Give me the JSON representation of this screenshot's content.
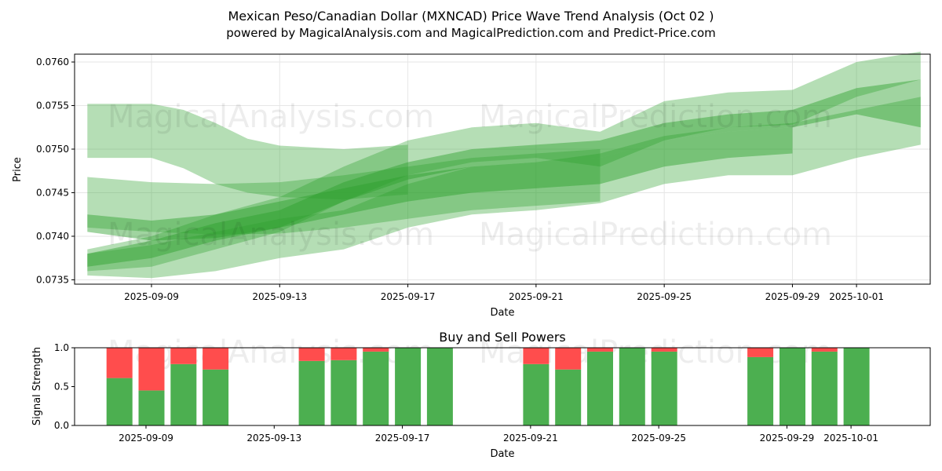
{
  "colors": {
    "band": "#2ca02c",
    "buy": "#4caf50",
    "sell": "#ff4d4d",
    "grid": "#e6e6e6"
  },
  "watermarks": [
    "MagicalAnalysis.com",
    "MagicalPrediction.com"
  ],
  "chart_data": [
    {
      "type": "area",
      "title": "Mexican Peso/Canadian Dollar (MXNCAD) Price Wave Trend Analysis (Oct 02 )",
      "subtitle": "powered by MagicalAnalysis.com and MagicalPrediction.com and Predict-Price.com",
      "xlabel": "Date",
      "ylabel": "Price",
      "xlim": [
        "2025-09-06.6",
        "2025-10-03.3"
      ],
      "ylim": [
        0.07345,
        0.07609
      ],
      "x_ticks": [
        "2025-09-09",
        "2025-09-13",
        "2025-09-17",
        "2025-09-21",
        "2025-09-25",
        "2025-09-29",
        "2025-10-01"
      ],
      "y_ticks": [
        "0.0735",
        "0.0740",
        "0.0745",
        "0.0750",
        "0.0755",
        "0.0760"
      ],
      "grid": true,
      "series": [
        {
          "name": "wave-band-1",
          "opacity": 0.35,
          "points": [
            {
              "x": "2025-09-07",
              "lo": 0.0749,
              "hi": 0.07552
            },
            {
              "x": "2025-09-08",
              "lo": 0.0749,
              "hi": 0.07552
            },
            {
              "x": "2025-09-09",
              "lo": 0.0749,
              "hi": 0.07552
            },
            {
              "x": "2025-09-10",
              "lo": 0.07478,
              "hi": 0.07545
            },
            {
              "x": "2025-09-11",
              "lo": 0.0746,
              "hi": 0.0753
            },
            {
              "x": "2025-09-12",
              "lo": 0.0745,
              "hi": 0.07512
            },
            {
              "x": "2025-09-13",
              "lo": 0.07445,
              "hi": 0.07504
            },
            {
              "x": "2025-09-15",
              "lo": 0.07442,
              "hi": 0.075
            },
            {
              "x": "2025-09-17",
              "lo": 0.07448,
              "hi": 0.07505
            }
          ]
        },
        {
          "name": "wave-band-2",
          "opacity": 0.35,
          "points": [
            {
              "x": "2025-09-07",
              "lo": 0.0741,
              "hi": 0.07468
            },
            {
              "x": "2025-09-09",
              "lo": 0.07405,
              "hi": 0.07462
            },
            {
              "x": "2025-09-11",
              "lo": 0.07402,
              "hi": 0.0746
            },
            {
              "x": "2025-09-13",
              "lo": 0.07403,
              "hi": 0.07462
            },
            {
              "x": "2025-09-15",
              "lo": 0.0741,
              "hi": 0.0747
            },
            {
              "x": "2025-09-17",
              "lo": 0.0742,
              "hi": 0.0748
            },
            {
              "x": "2025-09-19",
              "lo": 0.0743,
              "hi": 0.0749
            },
            {
              "x": "2025-09-21",
              "lo": 0.07435,
              "hi": 0.07495
            },
            {
              "x": "2025-09-23",
              "lo": 0.0744,
              "hi": 0.075
            }
          ]
        },
        {
          "name": "wave-band-3",
          "opacity": 0.45,
          "points": [
            {
              "x": "2025-09-07",
              "lo": 0.07405,
              "hi": 0.07425
            },
            {
              "x": "2025-09-09",
              "lo": 0.07395,
              "hi": 0.07418
            },
            {
              "x": "2025-09-11",
              "lo": 0.07398,
              "hi": 0.07425
            },
            {
              "x": "2025-09-13",
              "lo": 0.0741,
              "hi": 0.0744
            },
            {
              "x": "2025-09-15",
              "lo": 0.07425,
              "hi": 0.07455
            },
            {
              "x": "2025-09-17",
              "lo": 0.0744,
              "hi": 0.0747
            },
            {
              "x": "2025-09-19",
              "lo": 0.0745,
              "hi": 0.0748
            },
            {
              "x": "2025-09-21",
              "lo": 0.07455,
              "hi": 0.07485
            },
            {
              "x": "2025-09-23",
              "lo": 0.0746,
              "hi": 0.0749
            },
            {
              "x": "2025-09-25",
              "lo": 0.0748,
              "hi": 0.0751
            },
            {
              "x": "2025-09-27",
              "lo": 0.0749,
              "hi": 0.0752
            },
            {
              "x": "2025-09-29",
              "lo": 0.07495,
              "hi": 0.07525
            }
          ]
        },
        {
          "name": "wave-band-4",
          "opacity": 0.35,
          "points": [
            {
              "x": "2025-09-07",
              "lo": 0.07355,
              "hi": 0.0738
            },
            {
              "x": "2025-09-09",
              "lo": 0.07352,
              "hi": 0.0739
            },
            {
              "x": "2025-09-11",
              "lo": 0.0736,
              "hi": 0.07405
            },
            {
              "x": "2025-09-13",
              "lo": 0.07375,
              "hi": 0.0742
            },
            {
              "x": "2025-09-15",
              "lo": 0.07385,
              "hi": 0.0743
            },
            {
              "x": "2025-09-17",
              "lo": 0.0741,
              "hi": 0.0746
            },
            {
              "x": "2025-09-19",
              "lo": 0.07425,
              "hi": 0.0748
            },
            {
              "x": "2025-09-21",
              "lo": 0.0743,
              "hi": 0.07485
            },
            {
              "x": "2025-09-23",
              "lo": 0.07438,
              "hi": 0.07495
            },
            {
              "x": "2025-09-25",
              "lo": 0.0746,
              "hi": 0.07515
            },
            {
              "x": "2025-09-27",
              "lo": 0.0747,
              "hi": 0.07525
            },
            {
              "x": "2025-09-29",
              "lo": 0.0747,
              "hi": 0.0753
            },
            {
              "x": "2025-10-01",
              "lo": 0.0749,
              "hi": 0.07545
            },
            {
              "x": "2025-10-03",
              "lo": 0.07505,
              "hi": 0.0756
            }
          ]
        },
        {
          "name": "wave-band-5",
          "opacity": 0.35,
          "points": [
            {
              "x": "2025-09-07",
              "lo": 0.0736,
              "hi": 0.07385
            },
            {
              "x": "2025-09-09",
              "lo": 0.07365,
              "hi": 0.074
            },
            {
              "x": "2025-09-11",
              "lo": 0.07385,
              "hi": 0.07425
            },
            {
              "x": "2025-09-13",
              "lo": 0.07405,
              "hi": 0.07445
            },
            {
              "x": "2025-09-15",
              "lo": 0.0744,
              "hi": 0.0748
            },
            {
              "x": "2025-09-17",
              "lo": 0.0747,
              "hi": 0.0751
            },
            {
              "x": "2025-09-19",
              "lo": 0.07485,
              "hi": 0.07525
            },
            {
              "x": "2025-09-21",
              "lo": 0.0749,
              "hi": 0.0753
            },
            {
              "x": "2025-09-23",
              "lo": 0.0748,
              "hi": 0.0752
            },
            {
              "x": "2025-09-25",
              "lo": 0.0751,
              "hi": 0.07555
            },
            {
              "x": "2025-09-27",
              "lo": 0.07525,
              "hi": 0.07565
            },
            {
              "x": "2025-09-29",
              "lo": 0.07528,
              "hi": 0.07568
            },
            {
              "x": "2025-10-01",
              "lo": 0.0756,
              "hi": 0.076
            },
            {
              "x": "2025-10-03",
              "lo": 0.0758,
              "hi": 0.07612
            }
          ]
        },
        {
          "name": "wave-band-6",
          "opacity": 0.45,
          "points": [
            {
              "x": "2025-09-07",
              "lo": 0.07365,
              "hi": 0.0738
            },
            {
              "x": "2025-09-09",
              "lo": 0.07375,
              "hi": 0.07395
            },
            {
              "x": "2025-09-11",
              "lo": 0.07395,
              "hi": 0.07415
            },
            {
              "x": "2025-09-13",
              "lo": 0.0741,
              "hi": 0.0743
            },
            {
              "x": "2025-09-15",
              "lo": 0.0744,
              "hi": 0.07462
            },
            {
              "x": "2025-09-17",
              "lo": 0.07465,
              "hi": 0.07485
            },
            {
              "x": "2025-09-19",
              "lo": 0.0748,
              "hi": 0.075
            },
            {
              "x": "2025-09-21",
              "lo": 0.07485,
              "hi": 0.07505
            },
            {
              "x": "2025-09-23",
              "lo": 0.0749,
              "hi": 0.0751
            },
            {
              "x": "2025-09-25",
              "lo": 0.0751,
              "hi": 0.0753
            },
            {
              "x": "2025-09-27",
              "lo": 0.0752,
              "hi": 0.0754
            },
            {
              "x": "2025-09-29",
              "lo": 0.07525,
              "hi": 0.07545
            },
            {
              "x": "2025-10-01",
              "lo": 0.0754,
              "hi": 0.0757
            },
            {
              "x": "2025-10-03",
              "lo": 0.07525,
              "hi": 0.0758
            }
          ]
        }
      ]
    },
    {
      "type": "bar",
      "title": "Buy and Sell Powers",
      "xlabel": "Date",
      "ylabel": "Signal Strength",
      "ylim": [
        0.0,
        1.0
      ],
      "y_ticks": [
        "0.0",
        "0.5",
        "1.0"
      ],
      "x_ticks": [
        "2025-09-09",
        "2025-09-13",
        "2025-09-17",
        "2025-09-21",
        "2025-09-25",
        "2025-09-29",
        "2025-10-01"
      ],
      "grid": false,
      "categories": [
        "2025-09-08",
        "2025-09-09",
        "2025-09-10",
        "2025-09-11",
        "2025-09-14",
        "2025-09-15",
        "2025-09-16",
        "2025-09-17",
        "2025-09-18",
        "2025-09-21",
        "2025-09-22",
        "2025-09-23",
        "2025-09-24",
        "2025-09-25",
        "2025-09-28",
        "2025-09-29",
        "2025-09-30",
        "2025-10-01"
      ],
      "series": [
        {
          "name": "Buy",
          "values": [
            0.61,
            0.45,
            0.79,
            0.72,
            0.83,
            0.84,
            0.95,
            1.0,
            1.0,
            0.79,
            0.72,
            0.95,
            1.0,
            0.95,
            0.88,
            1.0,
            0.95,
            1.0
          ]
        },
        {
          "name": "Sell",
          "values": [
            0.39,
            0.55,
            0.21,
            0.28,
            0.17,
            0.16,
            0.05,
            0.0,
            0.0,
            0.21,
            0.28,
            0.05,
            0.0,
            0.05,
            0.12,
            0.0,
            0.05,
            0.0
          ]
        }
      ]
    }
  ]
}
